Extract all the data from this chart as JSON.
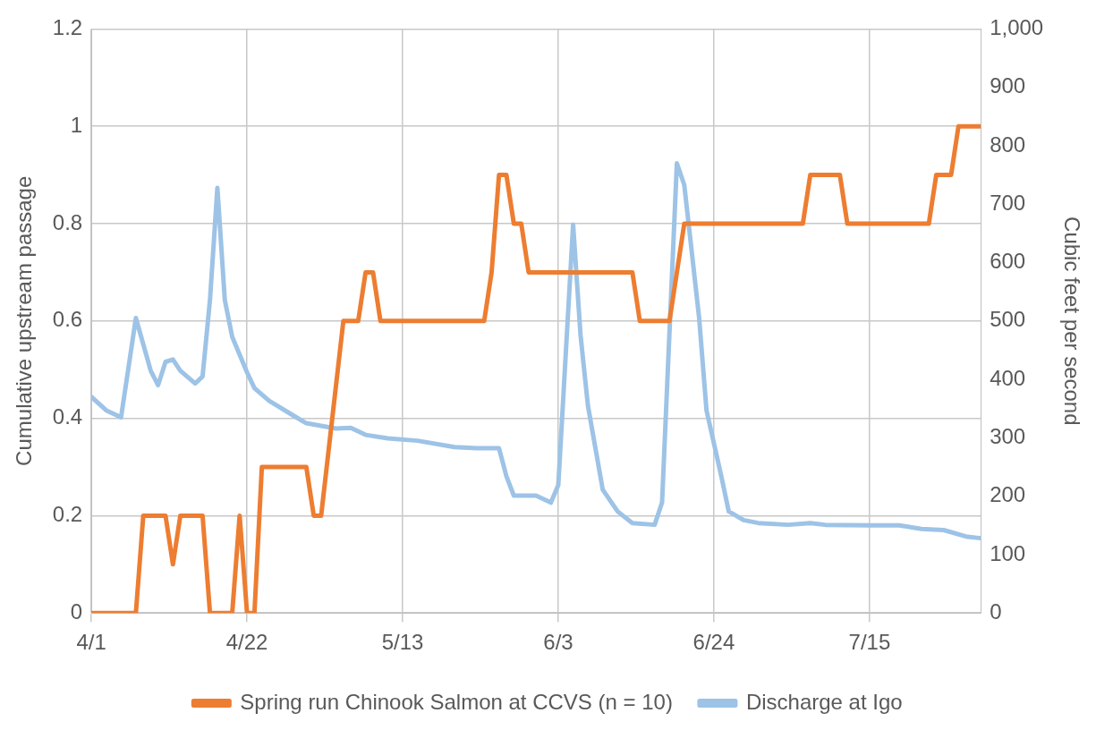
{
  "chart_data": {
    "type": "line",
    "xlabel": null,
    "ylabel": "Cumulative upstream passage",
    "y2label": "Cubic feet per second",
    "xlim": [
      "--04-01",
      "--07-30"
    ],
    "xticks": [
      {
        "value": "--04-01",
        "label": "4/1"
      },
      {
        "value": "--04-22",
        "label": "4/22"
      },
      {
        "value": "--05-13",
        "label": "5/13"
      },
      {
        "value": "--06-03",
        "label": "6/3"
      },
      {
        "value": "--06-24",
        "label": "6/24"
      },
      {
        "value": "--07-15",
        "label": "7/15"
      }
    ],
    "ylim": [
      0,
      1.2
    ],
    "yticks": [
      0,
      0.2,
      0.4,
      0.6,
      0.8,
      1,
      1.2
    ],
    "y2lim": [
      0,
      1000
    ],
    "y2ticks": [
      0,
      100,
      200,
      300,
      400,
      500,
      600,
      700,
      800,
      900,
      {
        "value": 1000,
        "label": "1,000"
      }
    ],
    "grid": true,
    "legend": "bottom",
    "marker": "none",
    "line_style": "solid",
    "series": [
      {
        "name": "Spring run Chinook Salmon at CCVS (n = 10)",
        "color": "#ed7d31",
        "x": [
          "--04-01",
          "--04-07",
          "--04-08",
          "--04-11",
          "--04-12",
          "--04-13",
          "--04-16",
          "--04-17",
          "--04-20",
          "--04-21",
          "--04-22",
          "--04-23",
          "--04-24",
          "--04-30",
          "--05-01",
          "--05-02",
          "--05-05",
          "--05-07",
          "--05-08",
          "--05-09",
          "--05-10",
          "--05-24",
          "--05-25",
          "--05-26",
          "--05-27",
          "--05-28",
          "--05-29",
          "--05-30",
          "--06-13",
          "--06-14",
          "--06-18",
          "--06-20",
          "--07-06",
          "--07-07",
          "--07-11",
          "--07-12",
          "--07-23",
          "--07-24",
          "--07-26",
          "--07-27",
          "--07-30"
        ],
        "values": [
          0,
          0,
          0.2,
          0.2,
          0.1,
          0.2,
          0.2,
          0,
          0,
          0.2,
          0,
          0,
          0.3,
          0.3,
          0.2,
          0.2,
          0.6,
          0.6,
          0.7,
          0.7,
          0.6,
          0.6,
          0.7,
          0.9,
          0.9,
          0.8,
          0.8,
          0.7,
          0.7,
          0.6,
          0.6,
          0.8,
          0.8,
          0.9,
          0.9,
          0.8,
          0.8,
          0.9,
          0.9,
          1,
          1
        ]
      },
      {
        "name": "Discharge at Igo",
        "color": "#9dc3e6",
        "axis": "y2",
        "x": [
          "--04-01",
          "--04-03",
          "--04-05",
          "--04-07",
          "--04-09",
          "--04-10",
          "--04-11",
          "--04-12",
          "--04-13",
          "--04-15",
          "--04-16",
          "--04-17",
          "--04-18",
          "--04-19",
          "--04-20",
          "--04-22",
          "--04-23",
          "--04-25",
          "--04-28",
          "--04-30",
          "--05-04",
          "--05-06",
          "--05-08",
          "--05-11",
          "--05-15",
          "--05-20",
          "--05-23",
          "--05-26",
          "--05-27",
          "--05-28",
          "--05-31",
          "--06-02",
          "--06-03",
          "--06-05",
          "--06-06",
          "--06-07",
          "--06-09",
          "--06-11",
          "--06-13",
          "--06-16",
          "--06-17",
          "--06-19",
          "--06-20",
          "--06-22",
          "--06-23",
          "--06-25",
          "--06-26",
          "--06-28",
          "--06-30",
          "--07-04",
          "--07-07",
          "--07-09",
          "--07-15",
          "--07-19",
          "--07-22",
          "--07-25",
          "--07-28",
          "--07-30"
        ],
        "values": [
          370,
          347,
          335,
          505,
          415,
          390,
          430,
          434,
          415,
          393,
          405,
          536,
          728,
          536,
          473,
          412,
          385,
          363,
          340,
          325,
          316,
          317,
          305,
          299,
          295,
          284,
          282,
          282,
          234,
          201,
          201,
          189,
          219,
          665,
          476,
          355,
          211,
          174,
          154,
          151,
          189,
          770,
          733,
          506,
          347,
          234,
          174,
          159,
          154,
          151,
          154,
          151,
          150,
          150,
          144,
          142,
          131,
          128
        ]
      }
    ]
  }
}
